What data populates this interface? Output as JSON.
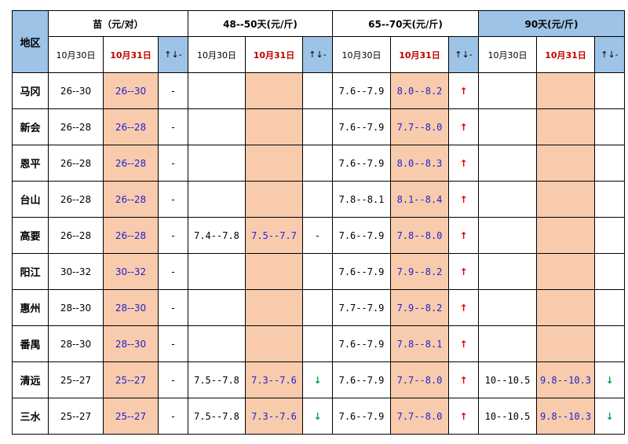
{
  "header": {
    "region_label": "地区",
    "groups": [
      {
        "label": "苗（元/对）",
        "d1": "10月30日",
        "d2": "10月31日",
        "trend": "↑↓-"
      },
      {
        "label": "48--50天(元/斤)",
        "d1": "10月30日",
        "d2": "10月31日",
        "trend": "↑↓-"
      },
      {
        "label": "65--70天(元/斤)",
        "d1": "10月30日",
        "d2": "10月31日",
        "trend": "↑↓-"
      },
      {
        "label": "90天(元/斤)",
        "d1": "10月30日",
        "d2": "10月31日",
        "trend": "↑↓-"
      }
    ]
  },
  "colors": {
    "header_blue": "#9dc3e6",
    "highlight_peach": "#f8cbad",
    "value_blue": "#2222d0",
    "date_red": "#c00000",
    "up_red": "#e00000",
    "down_green": "#00a040"
  },
  "rows": [
    {
      "region": "马冈",
      "seed": [
        "26--30",
        "26--30",
        "-"
      ],
      "d48": [
        "",
        "",
        ""
      ],
      "d65": [
        "7.6--7.9",
        "8.0--8.2",
        "↑"
      ],
      "d90": [
        "",
        "",
        ""
      ]
    },
    {
      "region": "新会",
      "seed": [
        "26--28",
        "26--28",
        "-"
      ],
      "d48": [
        "",
        "",
        ""
      ],
      "d65": [
        "7.6--7.9",
        "7.7--8.0",
        "↑"
      ],
      "d90": [
        "",
        "",
        ""
      ]
    },
    {
      "region": "恩平",
      "seed": [
        "26--28",
        "26--28",
        "-"
      ],
      "d48": [
        "",
        "",
        ""
      ],
      "d65": [
        "7.6--7.9",
        "8.0--8.3",
        "↑"
      ],
      "d90": [
        "",
        "",
        ""
      ]
    },
    {
      "region": "台山",
      "seed": [
        "26--28",
        "26--28",
        "-"
      ],
      "d48": [
        "",
        "",
        ""
      ],
      "d65": [
        "7.8--8.1",
        "8.1--8.4",
        "↑"
      ],
      "d90": [
        "",
        "",
        ""
      ]
    },
    {
      "region": "高要",
      "seed": [
        "26--28",
        "26--28",
        "-"
      ],
      "d48": [
        "7.4--7.8",
        "7.5--7.7",
        "-"
      ],
      "d65": [
        "7.6--7.9",
        "7.8--8.0",
        "↑"
      ],
      "d90": [
        "",
        "",
        ""
      ]
    },
    {
      "region": "阳江",
      "seed": [
        "30--32",
        "30--32",
        "-"
      ],
      "d48": [
        "",
        "",
        ""
      ],
      "d65": [
        "7.6--7.9",
        "7.9--8.2",
        "↑"
      ],
      "d90": [
        "",
        "",
        ""
      ]
    },
    {
      "region": "惠州",
      "seed": [
        "28--30",
        "28--30",
        "-"
      ],
      "d48": [
        "",
        "",
        ""
      ],
      "d65": [
        "7.7--7.9",
        "7.9--8.2",
        "↑"
      ],
      "d90": [
        "",
        "",
        ""
      ]
    },
    {
      "region": "番禺",
      "seed": [
        "28--30",
        "28--30",
        "-"
      ],
      "d48": [
        "",
        "",
        ""
      ],
      "d65": [
        "7.6--7.9",
        "7.8--8.1",
        "↑"
      ],
      "d90": [
        "",
        "",
        ""
      ]
    },
    {
      "region": "清远",
      "seed": [
        "25--27",
        "25--27",
        "-"
      ],
      "d48": [
        "7.5--7.8",
        "7.3--7.6",
        "↓"
      ],
      "d65": [
        "7.6--7.9",
        "7.7--8.0",
        "↑"
      ],
      "d90": [
        "10--10.5",
        "9.8--10.3",
        "↓"
      ]
    },
    {
      "region": "三水",
      "seed": [
        "25--27",
        "25--27",
        "-"
      ],
      "d48": [
        "7.5--7.8",
        "7.3--7.6",
        "↓"
      ],
      "d65": [
        "7.6--7.9",
        "7.7--8.0",
        "↑"
      ],
      "d90": [
        "10--10.5",
        "9.8--10.3",
        "↓"
      ]
    }
  ]
}
